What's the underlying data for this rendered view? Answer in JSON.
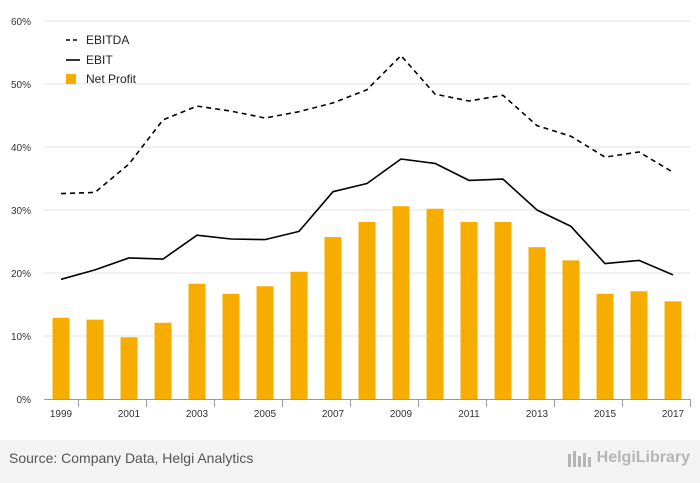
{
  "chart_data": {
    "type": "bar",
    "x": [
      "1999",
      "2000",
      "2001",
      "2002",
      "2003",
      "2004",
      "2005",
      "2006",
      "2007",
      "2008",
      "2009",
      "2010",
      "2011",
      "2012",
      "2013",
      "2014",
      "2015",
      "2016",
      "2017"
    ],
    "x_tick_labels": [
      "1999",
      "2001",
      "2003",
      "2005",
      "2007",
      "2009",
      "2011",
      "2013",
      "2015",
      "2017"
    ],
    "y_tick_labels": [
      "0%",
      "10%",
      "20%",
      "30%",
      "40%",
      "50%",
      "60%"
    ],
    "ylim": [
      0,
      60
    ],
    "y_unit": "%",
    "grid": true,
    "legend_position": "top-left",
    "series": [
      {
        "name": "EBITDA",
        "type": "line",
        "style": "dashed",
        "color": "#000000",
        "values": [
          32.6,
          32.8,
          37.3,
          44.3,
          46.5,
          45.7,
          44.6,
          45.6,
          47.0,
          49.1,
          54.5,
          48.4,
          47.3,
          48.2,
          43.4,
          41.7,
          38.4,
          39.2,
          36.0
        ]
      },
      {
        "name": "EBIT",
        "type": "line",
        "style": "solid",
        "color": "#000000",
        "values": [
          19.0,
          20.5,
          22.4,
          22.2,
          26.0,
          25.4,
          25.3,
          26.6,
          32.9,
          34.2,
          38.1,
          37.4,
          34.7,
          34.9,
          30.0,
          27.4,
          21.5,
          22.0,
          19.7
        ]
      },
      {
        "name": "Net Profit",
        "type": "bar",
        "color": "#f6ad00",
        "values": [
          12.9,
          12.6,
          9.8,
          12.1,
          18.3,
          16.7,
          17.9,
          20.2,
          25.7,
          28.1,
          30.6,
          30.2,
          28.1,
          28.1,
          24.1,
          22.0,
          16.7,
          17.1,
          15.5
        ]
      }
    ]
  },
  "footer": {
    "source": "Source: Company Data, Helgi Analytics",
    "brand": "HelgiLibrary"
  },
  "colors": {
    "bar": "#f6ad00",
    "line": "#000000",
    "grid": "#e3e3e3",
    "footer_bg": "#f3f3f3"
  }
}
